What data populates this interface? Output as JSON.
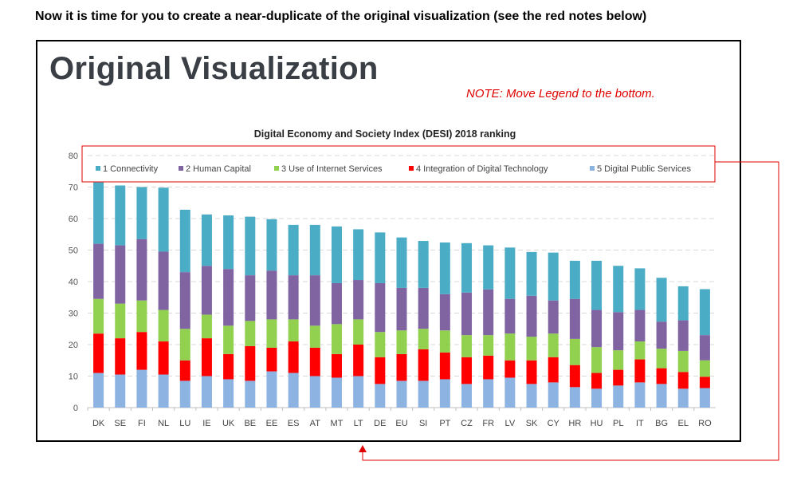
{
  "header": "Now it is time for you to create a near-duplicate of the original visualization (see the red notes below)",
  "slide_title": "Original Visualization",
  "note": "NOTE:  Move Legend to the bottom.",
  "chart_data": {
    "type": "bar",
    "stacked": true,
    "title": "Digital Economy and Society Index (DESI) 2018 ranking",
    "xlabel": "",
    "ylabel": "",
    "ylim": [
      0,
      80
    ],
    "yticks": [
      0,
      10,
      20,
      30,
      40,
      50,
      60,
      70,
      80
    ],
    "grid": true,
    "legend_position": "top",
    "categories": [
      "DK",
      "SE",
      "FI",
      "NL",
      "LU",
      "IE",
      "UK",
      "BE",
      "EE",
      "ES",
      "AT",
      "MT",
      "LT",
      "DE",
      "EU",
      "SI",
      "PT",
      "CZ",
      "FR",
      "LV",
      "SK",
      "CY",
      "HR",
      "HU",
      "PL",
      "IT",
      "BG",
      "EL",
      "RO"
    ],
    "series": [
      {
        "name": "5 Digital Public Services",
        "color": "#8db3e2",
        "values": [
          11,
          10.5,
          12,
          10.5,
          8.5,
          10,
          9,
          8.5,
          11.5,
          11,
          10,
          9.5,
          10,
          7.5,
          8.5,
          8.5,
          9,
          7.5,
          9,
          9.5,
          7.5,
          8,
          6.5,
          6,
          7,
          8,
          7.5,
          6,
          6.2
        ]
      },
      {
        "name": "4 Integration of Digital Technology",
        "color": "#ff0000",
        "values": [
          12.5,
          11.5,
          12,
          10.5,
          6.5,
          12,
          8,
          11,
          7.5,
          10,
          9,
          7.5,
          10,
          8.5,
          8.5,
          10,
          8.5,
          8.5,
          7.5,
          5.5,
          7.5,
          8,
          7,
          5,
          5,
          7.3,
          5,
          5.3,
          3.6
        ]
      },
      {
        "name": "3 Use of Internet Services",
        "color": "#92d050",
        "values": [
          11,
          11,
          10,
          10,
          10,
          7.5,
          9,
          8,
          9,
          7,
          7,
          9.5,
          8,
          8,
          7.5,
          6.5,
          7,
          7,
          6.5,
          8.5,
          7.5,
          7.5,
          8.3,
          8.2,
          6.2,
          5.7,
          6.2,
          6.7,
          5.2
        ]
      },
      {
        "name": "2 Human Capital",
        "color": "#8064a2",
        "values": [
          17.5,
          18.5,
          19.5,
          18.5,
          18,
          15.5,
          18,
          14.5,
          15.5,
          14,
          16,
          13,
          12.5,
          15.5,
          13.5,
          13,
          11.5,
          13.5,
          14.5,
          11,
          13,
          10.5,
          12.7,
          11.8,
          12.1,
          10,
          8.6,
          9.7,
          8
        ]
      },
      {
        "name": "1 Connectivity",
        "color": "#4bacc6",
        "values": [
          19.5,
          19,
          16.5,
          20.3,
          19.8,
          16.3,
          17,
          18.6,
          16.3,
          16,
          16,
          18,
          16.1,
          16.1,
          16,
          14.9,
          16.4,
          15.7,
          14,
          16.3,
          13.9,
          15.2,
          12.1,
          15.6,
          14.7,
          13.2,
          13.9,
          10.8,
          14.6
        ]
      }
    ],
    "legend_order": [
      4,
      3,
      2,
      1,
      0
    ]
  }
}
